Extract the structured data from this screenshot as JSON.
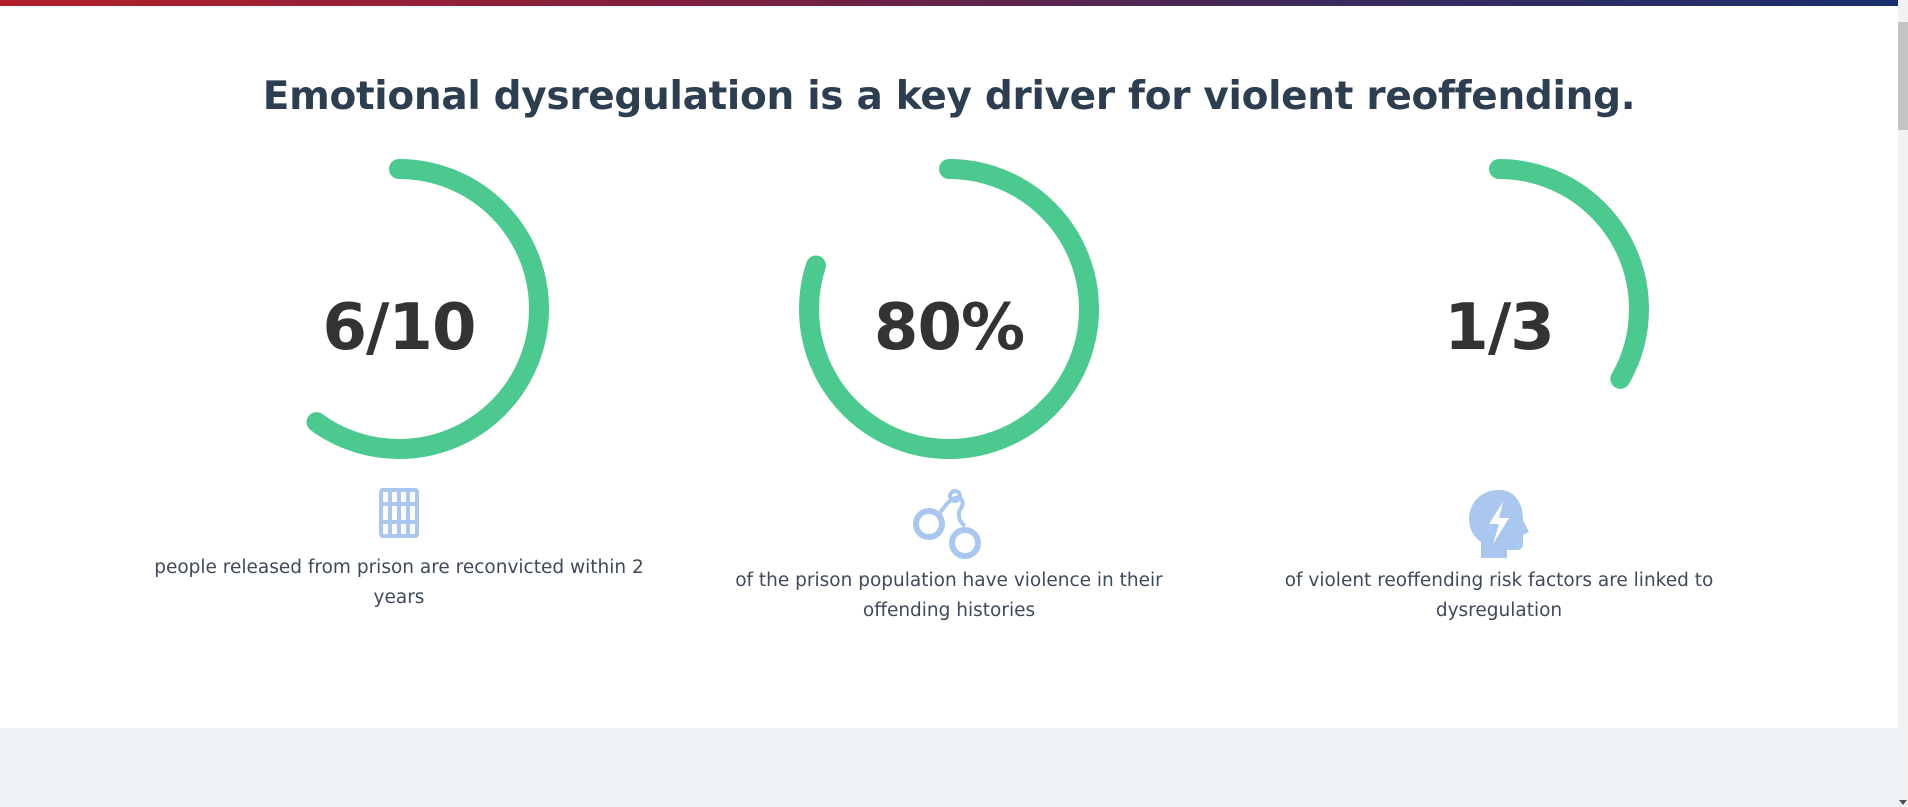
{
  "headline": "Emotional dysregulation is a key driver for violent reoffending.",
  "colors": {
    "ring": "#4cc98e",
    "icon": "#aac8ef",
    "text": "#333333",
    "heading": "#2c3e50"
  },
  "stats": [
    {
      "value": "6/10",
      "fraction": 0.6,
      "icon": "prison-bars-icon",
      "caption": "people released from prison are reconvicted within 2 years"
    },
    {
      "value": "80%",
      "fraction": 0.8,
      "icon": "handcuffs-icon",
      "caption": "of the prison population have violence in their offending histories"
    },
    {
      "value": "1/3",
      "fraction": 0.333,
      "icon": "head-lightning-icon",
      "caption": "of violent reoffending risk factors are linked to dysregulation"
    }
  ]
}
